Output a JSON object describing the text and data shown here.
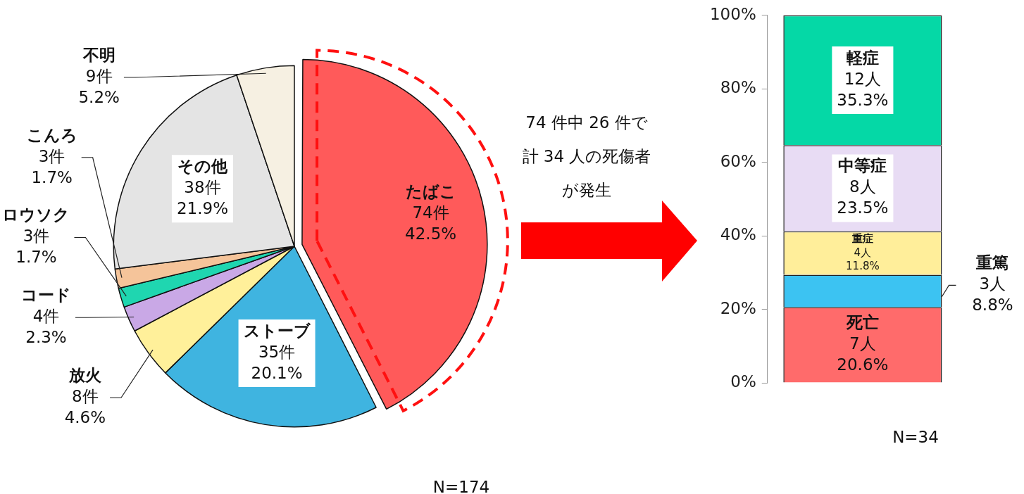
{
  "chart_data": [
    {
      "type": "pie",
      "categories": [
        "たばこ",
        "ストーブ",
        "放火",
        "コード",
        "ロウソク",
        "こんろ",
        "その他",
        "不明"
      ],
      "values": [
        74,
        35,
        8,
        4,
        3,
        3,
        38,
        9
      ],
      "colors": [
        "#ff5a5a",
        "#3fb4e0",
        "#fff09a",
        "#c9a8e6",
        "#1fd6b0",
        "#f5c49a",
        "#e4e4e4",
        "#f6f0e2"
      ],
      "value_labels": [
        "74件\n42.5%",
        "35件\n20.1%",
        "8件\n4.6%",
        "4件\n2.3%",
        "3件\n1.7%",
        "3件\n1.7%",
        "38件\n21.9%",
        "9件\n5.2%"
      ],
      "annotations": [
        "N=174",
        "74 件中 26 件で計 34 人の死傷者が発生"
      ]
    },
    {
      "type": "bar",
      "stacked": true,
      "categories": [
        null
      ],
      "series": [
        {
          "name": "死亡",
          "color": "#ff6b6b",
          "values": [
            20.6
          ],
          "value_labels": [
            "7人\n20.6%"
          ]
        },
        {
          "name": "重篤",
          "color": "#3cc3f2",
          "values": [
            8.8
          ],
          "value_labels": [
            "3人\n8.8%"
          ]
        },
        {
          "name": "重症",
          "color": "#ffee9a",
          "values": [
            11.8
          ],
          "value_labels": [
            "4人\n11.8%"
          ]
        },
        {
          "name": "中等症",
          "color": "#e8dcf4",
          "values": [
            23.5
          ],
          "value_labels": [
            "8人\n23.5%"
          ]
        },
        {
          "name": "軽症",
          "color": "#05d8a6",
          "values": [
            35.3
          ],
          "value_labels": [
            "12人\n35.3%"
          ]
        }
      ],
      "ylim": [
        0,
        100
      ],
      "yticks": [
        {
          "value": 0,
          "label": "0%"
        },
        {
          "value": 20,
          "label": "20%"
        },
        {
          "value": 40,
          "label": "40%"
        },
        {
          "value": 60,
          "label": "60%"
        },
        {
          "value": 80,
          "label": "80%"
        },
        {
          "value": 100,
          "label": "100%"
        }
      ],
      "annotations": [
        "N=34"
      ]
    }
  ]
}
